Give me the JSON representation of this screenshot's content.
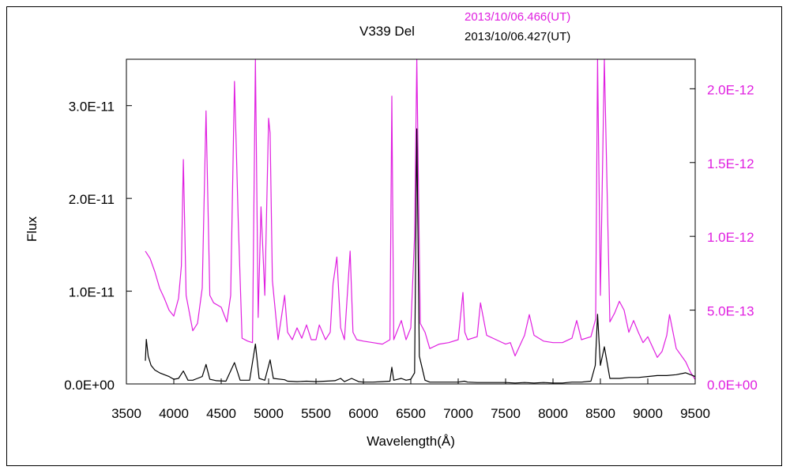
{
  "chart_data": {
    "type": "line",
    "title": "V339 Del",
    "xlabel": "Wavelength(Å)",
    "ylabel": "Flux",
    "xlim": [
      3500,
      9500
    ],
    "ylim_left": [
      0,
      3.5e-11
    ],
    "ylim_right": [
      0,
      2.2e-12
    ],
    "x_ticks": [
      "3500",
      "4000",
      "4500",
      "5000",
      "5500",
      "6000",
      "6500",
      "7000",
      "7500",
      "8000",
      "8500",
      "9000",
      "9500"
    ],
    "y_left_ticks": [
      "0.0E+00",
      "1.0E-11",
      "2.0E-11",
      "3.0E-11"
    ],
    "y_right_ticks": [
      "0.0E+00",
      "5.0E-13",
      "1.0E-12",
      "1.5E-12",
      "2.0E-12"
    ],
    "grid": false,
    "legend_position": "top-right",
    "series": [
      {
        "name": "2013/10/06.466(UT)",
        "axis": "right",
        "color": "#e020e0",
        "x": [
          3700,
          3750,
          3800,
          3850,
          3900,
          3950,
          4000,
          4050,
          4080,
          4101,
          4130,
          4200,
          4250,
          4300,
          4340,
          4380,
          4420,
          4500,
          4560,
          4600,
          4640,
          4680,
          4720,
          4780,
          4830,
          4861,
          4890,
          4920,
          4960,
          5000,
          5016,
          5040,
          5100,
          5169,
          5200,
          5250,
          5300,
          5350,
          5400,
          5450,
          5500,
          5535,
          5600,
          5650,
          5680,
          5720,
          5760,
          5800,
          5860,
          5890,
          5930,
          6000,
          6100,
          6200,
          6280,
          6300,
          6320,
          6400,
          6450,
          6500,
          6540,
          6563,
          6600,
          6650,
          6700,
          6800,
          6900,
          7000,
          7050,
          7070,
          7100,
          7200,
          7235,
          7300,
          7400,
          7500,
          7550,
          7600,
          7700,
          7750,
          7800,
          7900,
          8000,
          8100,
          8200,
          8250,
          8300,
          8400,
          8450,
          8470,
          8500,
          8542,
          8600,
          8650,
          8700,
          8750,
          8800,
          8850,
          8900,
          8950,
          9000,
          9100,
          9150,
          9200,
          9229,
          9300,
          9400,
          9450,
          9500
        ],
        "y": [
          9e-13,
          8.5e-13,
          7.6e-13,
          6.5e-13,
          5.8e-13,
          5e-13,
          4.6e-13,
          5.8e-13,
          8e-13,
          1.52e-12,
          6e-13,
          3.6e-13,
          4.1e-13,
          6.5e-13,
          1.85e-12,
          6e-13,
          5.5e-13,
          5.2e-13,
          4.2e-13,
          6e-13,
          2.05e-12,
          1.1e-12,
          3.1e-13,
          2.9e-13,
          2.8e-13,
          2.3e-12,
          4.5e-13,
          1.2e-12,
          6e-13,
          1.8e-12,
          1.7e-12,
          7e-13,
          3e-13,
          6e-13,
          3.5e-13,
          3e-13,
          3.8e-13,
          3.1e-13,
          4e-13,
          3e-13,
          3e-13,
          4e-13,
          3e-13,
          3.5e-13,
          6.8e-13,
          8.6e-13,
          3.8e-13,
          3e-13,
          9e-13,
          3.5e-13,
          3e-13,
          2.9e-13,
          2.8e-13,
          2.7e-13,
          3e-13,
          1.95e-12,
          3e-13,
          4.3e-13,
          3e-13,
          3.8e-13,
          1e-12,
          2.3e-12,
          4.1e-13,
          3.5e-13,
          2.4e-13,
          2.7e-13,
          2.8e-13,
          3e-13,
          6.2e-13,
          3.5e-13,
          3e-13,
          3.2e-13,
          5.5e-13,
          3.3e-13,
          3e-13,
          2.7e-13,
          2.8e-13,
          1.9e-13,
          3.3e-13,
          4.7e-13,
          3.3e-13,
          2.9e-13,
          2.8e-13,
          2.8e-13,
          3.1e-13,
          4.3e-13,
          3e-13,
          3.2e-13,
          4.4e-13,
          2.3e-12,
          6e-13,
          2.2e-12,
          4.2e-13,
          4.8e-13,
          5.6e-13,
          5e-13,
          3.5e-13,
          4.3e-13,
          3.5e-13,
          2.8e-13,
          3.2e-13,
          1.8e-13,
          2.2e-13,
          3.3e-13,
          4.7e-13,
          2.4e-13,
          1.5e-13,
          8e-14,
          3e-14
        ]
      },
      {
        "name": "2013/10/06.427(UT)",
        "axis": "left",
        "color": "#000000",
        "x": [
          3700,
          3710,
          3730,
          3760,
          3800,
          3850,
          3900,
          3950,
          4000,
          4050,
          4101,
          4150,
          4200,
          4250,
          4300,
          4340,
          4380,
          4450,
          4550,
          4640,
          4700,
          4800,
          4861,
          4900,
          4960,
          5016,
          5050,
          5169,
          5200,
          5300,
          5400,
          5500,
          5600,
          5700,
          5760,
          5800,
          5876,
          5950,
          6000,
          6100,
          6200,
          6280,
          6300,
          6320,
          6400,
          6450,
          6500,
          6540,
          6563,
          6590,
          6650,
          6700,
          6800,
          6900,
          7000,
          7065,
          7100,
          7200,
          7300,
          7400,
          7500,
          7600,
          7700,
          7800,
          7900,
          8000,
          8100,
          8200,
          8300,
          8400,
          8446,
          8470,
          8500,
          8542,
          8600,
          8700,
          8800,
          8900,
          9000,
          9100,
          9200,
          9300,
          9400,
          9500
        ],
        "y": [
          2.5e-12,
          4.8e-12,
          3e-12,
          2e-12,
          1.5e-12,
          1.2e-12,
          1e-12,
          8e-13,
          5e-13,
          6e-13,
          1.4e-12,
          4e-13,
          4e-13,
          6e-13,
          8e-13,
          2.1e-12,
          5e-13,
          3.5e-13,
          3e-13,
          2.3e-12,
          4e-13,
          4e-13,
          4.3e-12,
          6e-13,
          4e-13,
          2.6e-12,
          6e-13,
          4.5e-13,
          3e-13,
          2.5e-13,
          3e-13,
          2.5e-13,
          3e-13,
          3.5e-13,
          6e-13,
          2.5e-13,
          6e-13,
          2.5e-13,
          2e-13,
          2e-13,
          2.5e-13,
          3e-13,
          1.8e-12,
          4e-13,
          6e-13,
          4e-13,
          5e-13,
          1.2e-12,
          2.75e-11,
          3e-12,
          4e-13,
          2e-13,
          2e-13,
          2e-13,
          2e-13,
          3e-13,
          2e-13,
          1.5e-13,
          1.5e-13,
          1.5e-13,
          1.5e-13,
          1e-13,
          1.5e-13,
          1e-13,
          1.5e-13,
          1e-13,
          1e-13,
          2e-13,
          2e-13,
          3e-13,
          2e-12,
          7.5e-12,
          2e-12,
          4e-12,
          6e-13,
          6e-13,
          7e-13,
          7e-13,
          8e-13,
          9e-13,
          9e-13,
          1e-12,
          1.2e-12,
          8e-13
        ]
      }
    ]
  }
}
